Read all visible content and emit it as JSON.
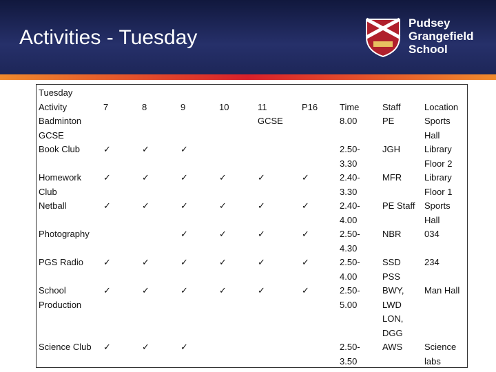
{
  "header": {
    "title": "Activities - Tuesday",
    "school": [
      "Pudsey",
      "Grangefield",
      "School"
    ]
  },
  "table": {
    "rows": [
      [
        "Tuesday",
        null,
        null,
        null,
        null,
        null,
        null,
        null,
        null,
        null
      ],
      [
        "Activity",
        "7",
        "8",
        "9",
        "10",
        "11",
        "P16",
        "Time",
        "Staff",
        "Location"
      ],
      [
        "Badminton\nGCSE",
        null,
        null,
        null,
        null,
        "GCSE",
        null,
        "8.00",
        "PE",
        "Sports\nHall"
      ],
      [
        "Book Club",
        "✓",
        "✓",
        "✓",
        null,
        null,
        null,
        "2.50-\n3.30",
        "JGH",
        "Library\nFloor 2"
      ],
      [
        "Homework\nClub",
        "✓",
        "✓",
        "✓",
        "✓",
        "✓",
        "✓",
        "2.40-\n3.30",
        "MFR",
        "Library\nFloor 1"
      ],
      [
        "Netball",
        "✓",
        "✓",
        "✓",
        "✓",
        "✓",
        "✓",
        "2.40-\n4.00",
        "PE Staff",
        "Sports\nHall"
      ],
      [
        "Photography",
        null,
        null,
        "✓",
        "✓",
        "✓",
        "✓",
        "2.50-\n4.30",
        "NBR",
        "034"
      ],
      [
        "PGS Radio",
        "✓",
        "✓",
        "✓",
        "✓",
        "✓",
        "✓",
        "2.50-\n4.00",
        "SSD\nPSS",
        "234"
      ],
      [
        "School\nProduction",
        "✓",
        "✓",
        "✓",
        "✓",
        "✓",
        "✓",
        "2.50-\n5.00",
        "BWY,\nLWD\nLON,\nDGG",
        "Man Hall"
      ],
      [
        "Science Club",
        "✓",
        "✓",
        "✓",
        null,
        null,
        null,
        "2.50-\n3.50",
        "AWS",
        "Science\nlabs"
      ]
    ]
  }
}
